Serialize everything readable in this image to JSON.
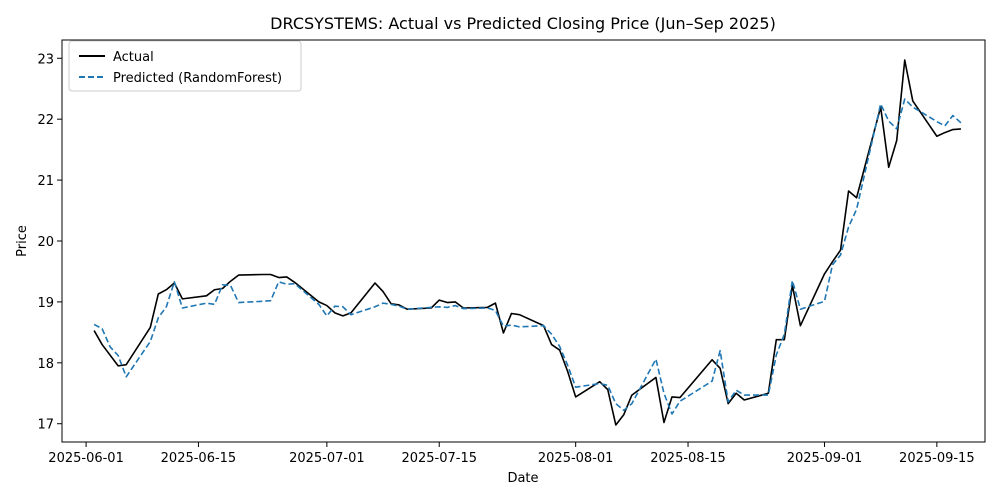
{
  "chart_data": {
    "type": "line",
    "title": "DRCSYSTEMS: Actual vs Predicted Closing Price (Jun–Sep 2025)",
    "xlabel": "Date",
    "ylabel": "Price",
    "x_type": "date",
    "xlim": [
      "2025-05-29",
      "2025-09-21"
    ],
    "ylim": [
      16.7,
      23.3
    ],
    "x_ticks": [
      "2025-06-01",
      "2025-06-15",
      "2025-07-01",
      "2025-07-15",
      "2025-08-01",
      "2025-08-15",
      "2025-09-01",
      "2025-09-15"
    ],
    "y_ticks": [
      17,
      18,
      19,
      20,
      21,
      22,
      23
    ],
    "grid": false,
    "legend_position": "top-left",
    "series": [
      {
        "name": "Actual",
        "color": "#000000",
        "style": "solid",
        "points": [
          [
            "2025-06-02",
            18.53
          ],
          [
            "2025-06-03",
            18.3
          ],
          [
            "2025-06-05",
            17.95
          ],
          [
            "2025-06-06",
            17.97
          ],
          [
            "2025-06-09",
            18.58
          ],
          [
            "2025-06-10",
            19.13
          ],
          [
            "2025-06-11",
            19.2
          ],
          [
            "2025-06-12",
            19.31
          ],
          [
            "2025-06-13",
            19.05
          ],
          [
            "2025-06-16",
            19.1
          ],
          [
            "2025-06-17",
            19.2
          ],
          [
            "2025-06-18",
            19.22
          ],
          [
            "2025-06-19",
            19.34
          ],
          [
            "2025-06-20",
            19.44
          ],
          [
            "2025-06-23",
            19.45
          ],
          [
            "2025-06-24",
            19.45
          ],
          [
            "2025-06-25",
            19.4
          ],
          [
            "2025-06-26",
            19.41
          ],
          [
            "2025-06-27",
            19.32
          ],
          [
            "2025-06-30",
            19.0
          ],
          [
            "2025-07-01",
            18.94
          ],
          [
            "2025-07-02",
            18.82
          ],
          [
            "2025-07-03",
            18.77
          ],
          [
            "2025-07-04",
            18.82
          ],
          [
            "2025-07-07",
            19.31
          ],
          [
            "2025-07-08",
            19.17
          ],
          [
            "2025-07-09",
            18.97
          ],
          [
            "2025-07-10",
            18.95
          ],
          [
            "2025-07-11",
            18.88
          ],
          [
            "2025-07-14",
            18.9
          ],
          [
            "2025-07-15",
            19.03
          ],
          [
            "2025-07-16",
            18.99
          ],
          [
            "2025-07-17",
            19.0
          ],
          [
            "2025-07-18",
            18.9
          ],
          [
            "2025-07-21",
            18.91
          ],
          [
            "2025-07-22",
            18.98
          ],
          [
            "2025-07-23",
            18.49
          ],
          [
            "2025-07-24",
            18.81
          ],
          [
            "2025-07-25",
            18.79
          ],
          [
            "2025-07-28",
            18.61
          ],
          [
            "2025-07-29",
            18.3
          ],
          [
            "2025-07-30",
            18.21
          ],
          [
            "2025-07-31",
            17.86
          ],
          [
            "2025-08-01",
            17.44
          ],
          [
            "2025-08-04",
            17.69
          ],
          [
            "2025-08-05",
            17.56
          ],
          [
            "2025-08-06",
            16.98
          ],
          [
            "2025-08-07",
            17.15
          ],
          [
            "2025-08-08",
            17.47
          ],
          [
            "2025-08-11",
            17.76
          ],
          [
            "2025-08-12",
            17.02
          ],
          [
            "2025-08-13",
            17.44
          ],
          [
            "2025-08-14",
            17.43
          ],
          [
            "2025-08-18",
            18.05
          ],
          [
            "2025-08-19",
            17.91
          ],
          [
            "2025-08-20",
            17.33
          ],
          [
            "2025-08-21",
            17.5
          ],
          [
            "2025-08-22",
            17.39
          ],
          [
            "2025-08-25",
            17.5
          ],
          [
            "2025-08-26",
            18.38
          ],
          [
            "2025-08-27",
            18.38
          ],
          [
            "2025-08-28",
            19.27
          ],
          [
            "2025-08-29",
            18.61
          ],
          [
            "2025-09-01",
            19.46
          ],
          [
            "2025-09-02",
            19.66
          ],
          [
            "2025-09-03",
            19.85
          ],
          [
            "2025-09-04",
            20.82
          ],
          [
            "2025-09-05",
            20.71
          ],
          [
            "2025-09-08",
            22.2
          ],
          [
            "2025-09-09",
            21.21
          ],
          [
            "2025-09-10",
            21.65
          ],
          [
            "2025-09-11",
            22.97
          ],
          [
            "2025-09-12",
            22.3
          ],
          [
            "2025-09-15",
            21.72
          ],
          [
            "2025-09-16",
            21.78
          ],
          [
            "2025-09-17",
            21.83
          ],
          [
            "2025-09-18",
            21.84
          ]
        ]
      },
      {
        "name": "Predicted (RandomForest)",
        "color": "#1f77b4",
        "style": "dashed",
        "points": [
          [
            "2025-06-02",
            18.63
          ],
          [
            "2025-06-03",
            18.56
          ],
          [
            "2025-06-04",
            18.26
          ],
          [
            "2025-06-05",
            18.12
          ],
          [
            "2025-06-06",
            17.77
          ],
          [
            "2025-06-09",
            18.35
          ],
          [
            "2025-06-10",
            18.74
          ],
          [
            "2025-06-11",
            18.92
          ],
          [
            "2025-06-12",
            19.33
          ],
          [
            "2025-06-13",
            18.9
          ],
          [
            "2025-06-16",
            18.98
          ],
          [
            "2025-06-17",
            18.96
          ],
          [
            "2025-06-18",
            19.28
          ],
          [
            "2025-06-19",
            19.27
          ],
          [
            "2025-06-20",
            18.99
          ],
          [
            "2025-06-23",
            19.01
          ],
          [
            "2025-06-24",
            19.02
          ],
          [
            "2025-06-25",
            19.33
          ],
          [
            "2025-06-26",
            19.29
          ],
          [
            "2025-06-27",
            19.3
          ],
          [
            "2025-06-30",
            18.96
          ],
          [
            "2025-07-01",
            18.77
          ],
          [
            "2025-07-02",
            18.93
          ],
          [
            "2025-07-03",
            18.92
          ],
          [
            "2025-07-04",
            18.79
          ],
          [
            "2025-07-07",
            18.92
          ],
          [
            "2025-07-08",
            18.98
          ],
          [
            "2025-07-09",
            18.96
          ],
          [
            "2025-07-10",
            18.93
          ],
          [
            "2025-07-11",
            18.88
          ],
          [
            "2025-07-14",
            18.91
          ],
          [
            "2025-07-15",
            18.92
          ],
          [
            "2025-07-16",
            18.91
          ],
          [
            "2025-07-17",
            18.94
          ],
          [
            "2025-07-18",
            18.89
          ],
          [
            "2025-07-21",
            18.9
          ],
          [
            "2025-07-22",
            18.86
          ],
          [
            "2025-07-23",
            18.6
          ],
          [
            "2025-07-24",
            18.62
          ],
          [
            "2025-07-25",
            18.59
          ],
          [
            "2025-07-28",
            18.61
          ],
          [
            "2025-07-29",
            18.47
          ],
          [
            "2025-07-30",
            18.27
          ],
          [
            "2025-07-31",
            17.96
          ],
          [
            "2025-08-01",
            17.6
          ],
          [
            "2025-08-04",
            17.66
          ],
          [
            "2025-08-05",
            17.63
          ],
          [
            "2025-08-06",
            17.33
          ],
          [
            "2025-08-07",
            17.22
          ],
          [
            "2025-08-08",
            17.33
          ],
          [
            "2025-08-11",
            18.06
          ],
          [
            "2025-08-12",
            17.5
          ],
          [
            "2025-08-13",
            17.16
          ],
          [
            "2025-08-14",
            17.37
          ],
          [
            "2025-08-18",
            17.7
          ],
          [
            "2025-08-19",
            18.2
          ],
          [
            "2025-08-20",
            17.36
          ],
          [
            "2025-08-21",
            17.55
          ],
          [
            "2025-08-22",
            17.47
          ],
          [
            "2025-08-25",
            17.47
          ],
          [
            "2025-08-26",
            18.13
          ],
          [
            "2025-08-27",
            18.47
          ],
          [
            "2025-08-28",
            19.35
          ],
          [
            "2025-08-29",
            18.88
          ],
          [
            "2025-09-01",
            19.01
          ],
          [
            "2025-09-02",
            19.61
          ],
          [
            "2025-09-03",
            19.77
          ],
          [
            "2025-09-04",
            20.23
          ],
          [
            "2025-09-05",
            20.52
          ],
          [
            "2025-09-08",
            22.25
          ],
          [
            "2025-09-09",
            21.97
          ],
          [
            "2025-09-10",
            21.84
          ],
          [
            "2025-09-11",
            22.33
          ],
          [
            "2025-09-12",
            22.2
          ],
          [
            "2025-09-15",
            21.96
          ],
          [
            "2025-09-16",
            21.89
          ],
          [
            "2025-09-17",
            22.06
          ],
          [
            "2025-09-18",
            21.94
          ]
        ]
      }
    ]
  }
}
